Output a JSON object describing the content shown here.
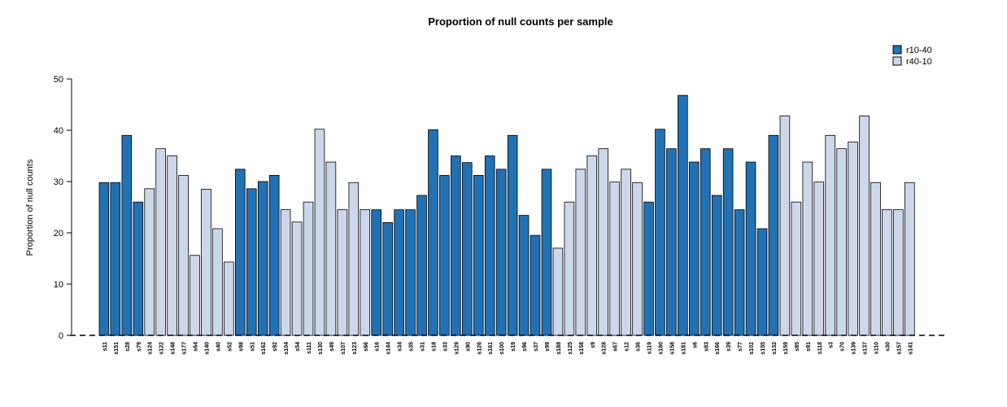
{
  "chart_data": {
    "type": "bar",
    "title": "Proportion of null counts per sample",
    "xlabel": "",
    "ylabel": "Proportion of null counts",
    "ylim": [
      0,
      50
    ],
    "yticks": [
      0,
      10,
      20,
      30,
      40,
      50
    ],
    "grid": false,
    "legend_position": "top-right",
    "baseline_style": "dashed",
    "series": [
      {
        "name": "r10-40",
        "color": "#2171B5"
      },
      {
        "name": "r40-10",
        "color": "#CCD8EA"
      }
    ],
    "bars": [
      {
        "label": "s11",
        "value": 29.8,
        "group": "r10-40"
      },
      {
        "label": "s151",
        "value": 29.8,
        "group": "r10-40"
      },
      {
        "label": "s28",
        "value": 39.0,
        "group": "r10-40"
      },
      {
        "label": "s79",
        "value": 26.0,
        "group": "r10-40"
      },
      {
        "label": "s124",
        "value": 28.6,
        "group": "r40-10"
      },
      {
        "label": "s122",
        "value": 36.4,
        "group": "r40-10"
      },
      {
        "label": "s148",
        "value": 35.0,
        "group": "r40-10"
      },
      {
        "label": "s177",
        "value": 31.2,
        "group": "r40-10"
      },
      {
        "label": "s64",
        "value": 15.6,
        "group": "r40-10"
      },
      {
        "label": "s140",
        "value": 28.5,
        "group": "r40-10"
      },
      {
        "label": "s40",
        "value": 20.8,
        "group": "r40-10"
      },
      {
        "label": "s52",
        "value": 14.3,
        "group": "r40-10"
      },
      {
        "label": "s98",
        "value": 32.4,
        "group": "r10-40"
      },
      {
        "label": "s51",
        "value": 28.6,
        "group": "r10-40"
      },
      {
        "label": "s162",
        "value": 30.0,
        "group": "r10-40"
      },
      {
        "label": "s92",
        "value": 31.2,
        "group": "r10-40"
      },
      {
        "label": "s104",
        "value": 24.5,
        "group": "r40-10"
      },
      {
        "label": "s54",
        "value": 22.1,
        "group": "r40-10"
      },
      {
        "label": "s111",
        "value": 26.0,
        "group": "r40-10"
      },
      {
        "label": "s130",
        "value": 40.2,
        "group": "r40-10"
      },
      {
        "label": "s49",
        "value": 33.8,
        "group": "r40-10"
      },
      {
        "label": "s107",
        "value": 24.5,
        "group": "r40-10"
      },
      {
        "label": "s123",
        "value": 29.8,
        "group": "r40-10"
      },
      {
        "label": "s66",
        "value": 24.5,
        "group": "r40-10"
      },
      {
        "label": "s16",
        "value": 24.5,
        "group": "r10-40"
      },
      {
        "label": "s144",
        "value": 22.0,
        "group": "r10-40"
      },
      {
        "label": "s34",
        "value": 24.5,
        "group": "r10-40"
      },
      {
        "label": "s35",
        "value": 24.5,
        "group": "r10-40"
      },
      {
        "label": "s31",
        "value": 27.3,
        "group": "r10-40"
      },
      {
        "label": "s18",
        "value": 40.1,
        "group": "r10-40"
      },
      {
        "label": "s33",
        "value": 31.2,
        "group": "r10-40"
      },
      {
        "label": "s129",
        "value": 35.0,
        "group": "r10-40"
      },
      {
        "label": "s90",
        "value": 33.7,
        "group": "r10-40"
      },
      {
        "label": "s126",
        "value": 31.2,
        "group": "r10-40"
      },
      {
        "label": "s161",
        "value": 35.0,
        "group": "r10-40"
      },
      {
        "label": "s100",
        "value": 32.4,
        "group": "r10-40"
      },
      {
        "label": "s19",
        "value": 39.0,
        "group": "r10-40"
      },
      {
        "label": "s96",
        "value": 23.4,
        "group": "r10-40"
      },
      {
        "label": "s37",
        "value": 19.5,
        "group": "r10-40"
      },
      {
        "label": "s99",
        "value": 32.4,
        "group": "r10-40"
      },
      {
        "label": "s188",
        "value": 17.0,
        "group": "r40-10"
      },
      {
        "label": "s125",
        "value": 26.0,
        "group": "r40-10"
      },
      {
        "label": "s158",
        "value": 32.4,
        "group": "r40-10"
      },
      {
        "label": "s9",
        "value": 35.0,
        "group": "r40-10"
      },
      {
        "label": "s128",
        "value": 36.4,
        "group": "r40-10"
      },
      {
        "label": "s67",
        "value": 29.9,
        "group": "r40-10"
      },
      {
        "label": "s12",
        "value": 32.4,
        "group": "r40-10"
      },
      {
        "label": "s36",
        "value": 29.8,
        "group": "r40-10"
      },
      {
        "label": "s119",
        "value": 26.0,
        "group": "r10-40"
      },
      {
        "label": "s180",
        "value": 40.2,
        "group": "r10-40"
      },
      {
        "label": "s158",
        "value": 36.4,
        "group": "r10-40"
      },
      {
        "label": "s181",
        "value": 46.8,
        "group": "r10-40"
      },
      {
        "label": "s6",
        "value": 33.8,
        "group": "r10-40"
      },
      {
        "label": "s83",
        "value": 36.4,
        "group": "r10-40"
      },
      {
        "label": "s166",
        "value": 27.3,
        "group": "r10-40"
      },
      {
        "label": "s39",
        "value": 36.4,
        "group": "r10-40"
      },
      {
        "label": "s77",
        "value": 24.5,
        "group": "r10-40"
      },
      {
        "label": "s102",
        "value": 33.8,
        "group": "r10-40"
      },
      {
        "label": "s155",
        "value": 20.8,
        "group": "r10-40"
      },
      {
        "label": "s132",
        "value": 39.0,
        "group": "r10-40"
      },
      {
        "label": "s159",
        "value": 42.8,
        "group": "r40-10"
      },
      {
        "label": "s85",
        "value": 26.0,
        "group": "r40-10"
      },
      {
        "label": "s91",
        "value": 33.8,
        "group": "r40-10"
      },
      {
        "label": "s118",
        "value": 29.9,
        "group": "r40-10"
      },
      {
        "label": "s3",
        "value": 39.0,
        "group": "r40-10"
      },
      {
        "label": "s70",
        "value": 36.4,
        "group": "r40-10"
      },
      {
        "label": "s139",
        "value": 37.7,
        "group": "r40-10"
      },
      {
        "label": "s137",
        "value": 42.8,
        "group": "r40-10"
      },
      {
        "label": "s110",
        "value": 29.8,
        "group": "r40-10"
      },
      {
        "label": "s30",
        "value": 24.5,
        "group": "r40-10"
      },
      {
        "label": "s157",
        "value": 24.5,
        "group": "r40-10"
      },
      {
        "label": "s141",
        "value": 29.8,
        "group": "r40-10"
      }
    ]
  }
}
